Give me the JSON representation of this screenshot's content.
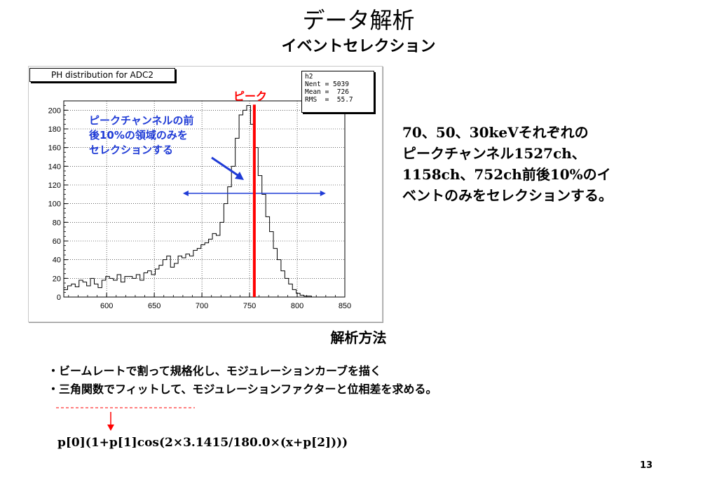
{
  "slide": {
    "title": "データ解析",
    "subtitle": "イベントセレクション",
    "page_number": "13"
  },
  "plot": {
    "title_box": "PH distribution for ADC2",
    "stats": {
      "name": "h2",
      "nent": "Nent = 5039",
      "mean": "Mean =  726",
      "rms": "RMS  =  55.7"
    },
    "peak_label": "ピーク",
    "annotation_lines": [
      "ピークチャンネルの前",
      "後10%の領域のみを",
      "セレクションする"
    ],
    "colors": {
      "peak_line": "#ff0000",
      "range_arrow": "#1f3bd6",
      "annotation": "#1f3bd6"
    }
  },
  "chart_data": {
    "type": "histogram",
    "title": "PH distribution for ADC2",
    "xlim": [
      555,
      850
    ],
    "ylim": [
      0,
      210
    ],
    "x_ticks": [
      600,
      650,
      700,
      750,
      800,
      850
    ],
    "y_ticks": [
      0,
      20,
      40,
      60,
      80,
      100,
      120,
      140,
      160,
      180,
      200
    ],
    "bin_width": 4,
    "x_start": 555,
    "values": [
      8,
      12,
      14,
      11,
      18,
      16,
      12,
      20,
      14,
      10,
      18,
      22,
      20,
      18,
      24,
      16,
      22,
      22,
      20,
      24,
      18,
      26,
      28,
      24,
      30,
      34,
      40,
      44,
      32,
      36,
      44,
      42,
      46,
      44,
      50,
      52,
      56,
      58,
      62,
      68,
      66,
      80,
      100,
      118,
      140,
      170,
      195,
      200,
      205,
      185,
      160,
      130,
      110,
      86,
      70,
      52,
      40,
      28,
      20,
      14,
      8,
      4,
      2,
      1,
      1,
      0,
      0,
      0,
      0,
      0,
      0,
      0,
      0,
      0
    ],
    "peak_x": 755,
    "selection_range": [
      680,
      830
    ]
  },
  "right_text": {
    "lines": [
      "70、50、30keVそれぞれの",
      "ピークチャンネル1527ch、",
      "1158ch、752ch前後10%のイ",
      "ベントのみをセレクションする。"
    ]
  },
  "method": {
    "title": "解析方法",
    "bullets": [
      "・ビームレートで割って規格化し、モジュレーションカーブを描く",
      "・三角関数でフィットして、モジュレーションファクターと位相差を求める。"
    ],
    "formula": "p[0](1+p[1]cos(2×3.1415/180.0×(x+p[2])))"
  }
}
